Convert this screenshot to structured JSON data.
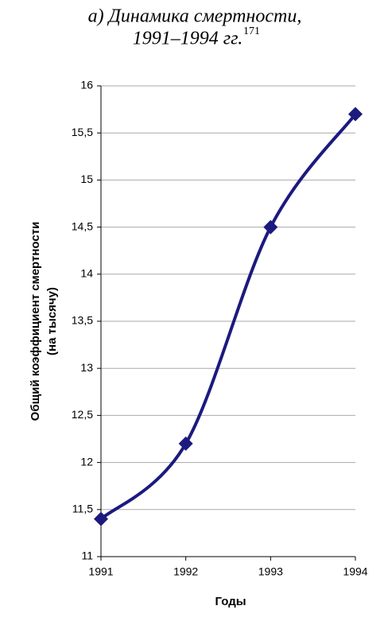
{
  "chart_data": {
    "type": "line",
    "title": [
      "а) Динамика смертности,",
      "1991–1994 гг."
    ],
    "title_note": "171",
    "x_label": "Годы",
    "y_label": [
      "Общий коэффициент смертности",
      "(на тысячу)"
    ],
    "x": [
      1991,
      1992,
      1993,
      1994
    ],
    "series": [
      {
        "color": "#1c1a7e",
        "values": [
          11.4,
          12.2,
          14.5,
          15.7
        ]
      }
    ],
    "xlim": [
      1991,
      1994
    ],
    "xticks": [
      1991,
      1992,
      1993,
      1994
    ],
    "ylim": [
      11,
      16
    ],
    "yticks": [
      11,
      {
        "value": 11.5,
        "label": "11,5"
      },
      12,
      {
        "value": 12.5,
        "label": "12,5"
      },
      13,
      {
        "value": 13.5,
        "label": "13,5"
      },
      14,
      {
        "value": 14.5,
        "label": "14,5"
      },
      15,
      {
        "value": 15.5,
        "label": "15,5"
      },
      16
    ],
    "grid": true,
    "smooth": true
  }
}
